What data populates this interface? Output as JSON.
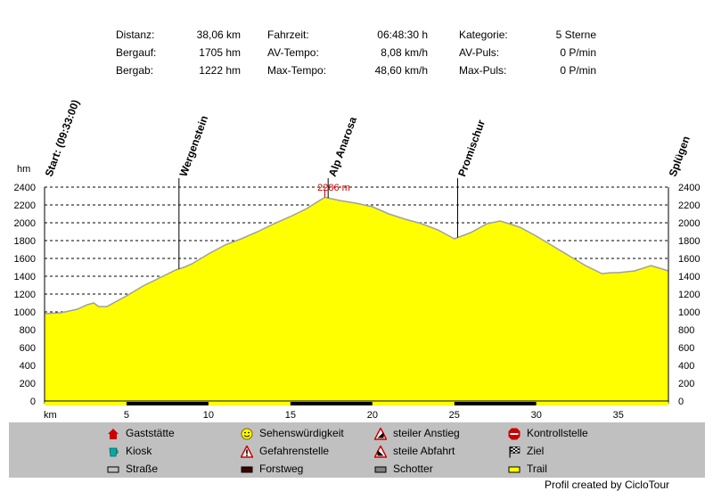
{
  "stats": {
    "col1": [
      {
        "label": "Distanz:",
        "value": "38,06 km"
      },
      {
        "label": "Bergauf:",
        "value": "1705 hm"
      },
      {
        "label": "Bergab:",
        "value": "1222 hm"
      }
    ],
    "col2": [
      {
        "label": "Fahrzeit:",
        "value": "06:48:30 h"
      },
      {
        "label": "AV-Tempo:",
        "value": "8,08 km/h"
      },
      {
        "label": "Max-Tempo:",
        "value": "48,60 km/h"
      }
    ],
    "col3": [
      {
        "label": "Kategorie:",
        "value": "5 Sterne"
      },
      {
        "label": "AV-Puls:",
        "value": "0 P/min"
      },
      {
        "label": "Max-Puls:",
        "value": "0 P/min"
      }
    ]
  },
  "chart_data": {
    "type": "area",
    "ylabel": "hm",
    "xlabel": "km",
    "xlim": [
      0,
      38.06
    ],
    "ylim": [
      0,
      2400
    ],
    "yticks": [
      0,
      200,
      400,
      600,
      800,
      1000,
      1200,
      1400,
      1600,
      1800,
      2000,
      2200,
      2400
    ],
    "xticks": [
      5,
      10,
      15,
      20,
      25,
      30,
      35
    ],
    "grid": true,
    "fill_color": "#ffff00",
    "line_color": "#a0a0a0",
    "series": [
      {
        "x": [
          0,
          1,
          2,
          2.6,
          3,
          3.3,
          3.8,
          4.3,
          5,
          6,
          7,
          8,
          8.5,
          9,
          10,
          11,
          12,
          13,
          14,
          15,
          16,
          16.6,
          17.1,
          17.5,
          18,
          19,
          20,
          21,
          22,
          23,
          24,
          24.5,
          25,
          26,
          27,
          27.8,
          28.5,
          29,
          30,
          31,
          32,
          33,
          34,
          34.6,
          35,
          36,
          37,
          38.06
        ],
        "y": [
          980,
          990,
          1030,
          1080,
          1100,
          1060,
          1060,
          1110,
          1180,
          1290,
          1380,
          1470,
          1500,
          1540,
          1650,
          1750,
          1820,
          1900,
          1990,
          2070,
          2160,
          2230,
          2286,
          2270,
          2250,
          2220,
          2180,
          2100,
          2040,
          1990,
          1920,
          1870,
          1820,
          1890,
          1990,
          2020,
          1980,
          1950,
          1850,
          1740,
          1630,
          1520,
          1430,
          1440,
          1440,
          1460,
          1520,
          1460
        ]
      }
    ],
    "peak_label": "2286 m",
    "peak_x": 17.1,
    "waypoints": [
      {
        "name": "Start: (09:33:00)",
        "x": 0
      },
      {
        "name": "Wergenstein",
        "x": 8.2
      },
      {
        "name": "Alp Anarosa",
        "x": 17.3
      },
      {
        "name": "Promischur",
        "x": 25.2
      },
      {
        "name": "Splügen",
        "x": 38.06
      }
    ],
    "surface_bar": [
      {
        "from": 0,
        "to": 5,
        "type": "trail"
      },
      {
        "from": 5,
        "to": 10,
        "type": "forstweg"
      },
      {
        "from": 10,
        "to": 15,
        "type": "trail"
      },
      {
        "from": 15,
        "to": 20,
        "type": "forstweg"
      },
      {
        "from": 20,
        "to": 25,
        "type": "trail"
      },
      {
        "from": 25,
        "to": 30,
        "type": "forstweg"
      },
      {
        "from": 30,
        "to": 38.06,
        "type": "trail"
      }
    ]
  },
  "legend": [
    {
      "label": "Gaststätte",
      "icon": "house-icon"
    },
    {
      "label": "Sehenswürdigkeit",
      "icon": "smiley-icon"
    },
    {
      "label": "steiler Anstieg",
      "icon": "steep-up-icon"
    },
    {
      "label": "Kontrollstelle",
      "icon": "stop-icon"
    },
    {
      "label": "Kiosk",
      "icon": "cup-icon"
    },
    {
      "label": "Gefahrenstelle",
      "icon": "danger-icon"
    },
    {
      "label": "steile Abfahrt",
      "icon": "steep-down-icon"
    },
    {
      "label": "Ziel",
      "icon": "finish-flag-icon"
    },
    {
      "label": "Straße",
      "icon": "road-swatch",
      "color": "#c0c0c0"
    },
    {
      "label": "Forstweg",
      "icon": "forest-road-swatch",
      "color": "#400000"
    },
    {
      "label": "Schotter",
      "icon": "gravel-swatch",
      "color": "#808080"
    },
    {
      "label": "Trail",
      "icon": "trail-swatch",
      "color": "#ffff00"
    }
  ],
  "credit": "Profil created by CicloTour"
}
